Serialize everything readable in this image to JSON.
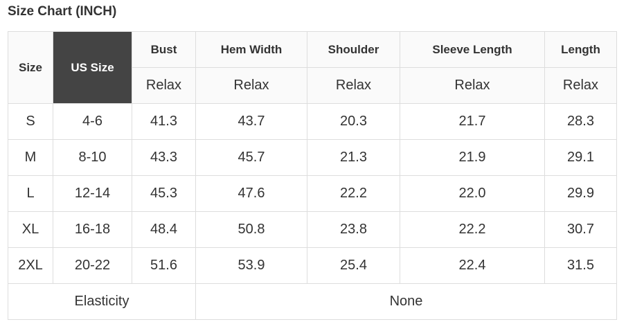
{
  "title": "Size Chart (INCH)",
  "table": {
    "header": [
      "Size",
      "US Size",
      "Bust",
      "Hem Width",
      "Shoulder",
      "Sleeve Length",
      "Length"
    ],
    "subheader": [
      "Relax",
      "Relax",
      "Relax",
      "Relax",
      "Relax"
    ],
    "rows": [
      [
        "S",
        "4-6",
        "41.3",
        "43.7",
        "20.3",
        "21.7",
        "28.3"
      ],
      [
        "M",
        "8-10",
        "43.3",
        "45.7",
        "21.3",
        "21.9",
        "29.1"
      ],
      [
        "L",
        "12-14",
        "45.3",
        "47.6",
        "22.2",
        "22.0",
        "29.9"
      ],
      [
        "XL",
        "16-18",
        "48.4",
        "50.8",
        "23.8",
        "22.2",
        "30.7"
      ],
      [
        "2XL",
        "20-22",
        "51.6",
        "53.9",
        "25.4",
        "22.4",
        "31.5"
      ]
    ],
    "footer": [
      "Elasticity",
      "None"
    ]
  }
}
